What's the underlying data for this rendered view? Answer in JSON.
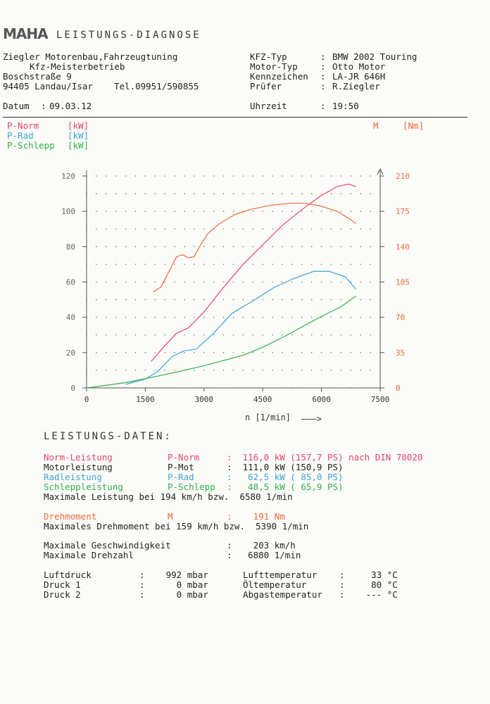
{
  "header": {
    "logo": "MAHA",
    "title": "LEISTUNGS-DIAGNOSE",
    "company_line1": "Ziegler Motorenbau,Fahrzeugtuning",
    "company_line2": "Kfz-Meisterbetrieb",
    "street": "Boschstraße 9",
    "city": "94405 Landau/Isar",
    "phone": "Tel.09951/590855",
    "date_label": "Datum",
    "date_value": "09.03.12",
    "fields": [
      {
        "label": "KFZ-Typ",
        "value": "BMW 2002 Touring"
      },
      {
        "label": "Motor-Typ",
        "value": "Otto Motor"
      },
      {
        "label": "Kennzeichen",
        "value": "LA-JR 646H"
      },
      {
        "label": "Prüfer",
        "value": "R.Ziegler"
      }
    ],
    "time_label": "Uhrzeit",
    "time_value": "19:50"
  },
  "legend": {
    "p_norm": "P-Norm",
    "p_norm_unit": "[kW]",
    "p_rad": "P-Rad",
    "p_rad_unit": "[kW]",
    "p_schlepp": "P-Schlepp",
    "p_schlepp_unit": "[kW]",
    "m": "M",
    "m_unit": "[Nm]"
  },
  "colors": {
    "p_norm": "#e4456a",
    "p_rad": "#3fa3d8",
    "p_schlepp": "#2fb14a",
    "m": "#ee6a3c",
    "axis": "#555555"
  },
  "chart_data": {
    "type": "line",
    "xlabel": "n [1/min]",
    "xlim": [
      0,
      7500
    ],
    "ylim_left": [
      0,
      120
    ],
    "ylim_right": [
      0,
      210
    ],
    "x_ticks": [
      0,
      1500,
      3000,
      4500,
      6000,
      7500
    ],
    "y_ticks_left": [
      0,
      20,
      40,
      60,
      80,
      100,
      120
    ],
    "y_ticks_right": [
      0,
      35,
      70,
      105,
      140,
      175,
      210
    ],
    "grid": true,
    "series": [
      {
        "name": "P-Norm",
        "unit": "kW",
        "axis": "left",
        "x": [
          1650,
          2000,
          2300,
          2600,
          3000,
          3500,
          4000,
          4500,
          5000,
          5500,
          6000,
          6400,
          6700,
          6880
        ],
        "y": [
          15,
          24,
          31,
          34,
          43,
          57,
          70,
          81,
          92,
          101,
          109,
          114,
          115.5,
          114
        ]
      },
      {
        "name": "P-Rad",
        "unit": "kW",
        "axis": "left",
        "x": [
          1000,
          1500,
          1800,
          2200,
          2500,
          2800,
          3200,
          3700,
          4300,
          4800,
          5300,
          5800,
          6200,
          6600,
          6880
        ],
        "y": [
          2,
          5,
          9,
          18,
          21,
          22,
          30,
          42,
          50,
          57,
          62,
          66,
          66,
          63,
          56
        ]
      },
      {
        "name": "P-Schlepp",
        "unit": "kW",
        "axis": "left",
        "x": [
          0,
          1000,
          2000,
          3000,
          4000,
          4500,
          5000,
          5500,
          6000,
          6500,
          6880
        ],
        "y": [
          0,
          3,
          7.5,
          12.5,
          18.5,
          23,
          28.5,
          34.5,
          40.5,
          46,
          52
        ]
      },
      {
        "name": "M",
        "unit": "Nm",
        "axis": "right",
        "x": [
          1700,
          1900,
          2100,
          2300,
          2450,
          2600,
          2750,
          2900,
          3100,
          3400,
          3800,
          4200,
          4700,
          5200,
          5600,
          6000,
          6400,
          6700,
          6880
        ],
        "y": [
          95,
          100,
          115,
          130,
          132,
          129,
          130,
          141,
          153,
          163,
          172,
          177,
          181,
          183,
          183,
          180,
          175,
          168,
          163
        ]
      }
    ]
  },
  "data": {
    "title": "LEISTUNGS-DATEN:",
    "power_rows": [
      {
        "label": "Norm-Leistung",
        "sym": "P-Norm",
        "value": ":  116,0 kW (157,7 PS) nach DIN 70020",
        "color": "norm"
      },
      {
        "label": "Motorleistung",
        "sym": "P-Mot",
        "value": ":  111,0 kW (150,9 PS)",
        "color": "plain"
      },
      {
        "label": "Radleistung",
        "sym": "P-Rad",
        "value": ":   62,5 kW ( 85,0 PS)",
        "color": "rad"
      },
      {
        "label": "Schleppleistung",
        "sym": "P-Schlepp",
        "value": ":   48,5 kW ( 65,9 PS)",
        "color": "schlepp"
      }
    ],
    "max_power": "Maximale Leistung bei 194 km/h bzw.  6580 1/min",
    "torque_label": "Drehmoment",
    "torque_sym": "M",
    "torque_value": ":    191 Nm",
    "max_torque": "Maximales Drehmoment bei 159 km/h bzw.  5390 1/min",
    "max_speed_label": "Maximale Geschwindigkeit",
    "max_speed_value": ":    203 km/h",
    "max_rpm_label": "Maximale Drehzahl",
    "max_rpm_value": ":   6880 1/min",
    "env_left": [
      {
        "label": "Luftdruck",
        "value": ":    992 mbar"
      },
      {
        "label": "Druck 1",
        "value": ":      0 mbar"
      },
      {
        "label": "Druck 2",
        "value": ":      0 mbar"
      }
    ],
    "env_right": [
      {
        "label": "Lufttemperatur",
        "value": ":     33 °C"
      },
      {
        "label": "Öltemperatur",
        "value": ":     80 °C"
      },
      {
        "label": "Abgastemperatur",
        "value": ":    --- °C"
      }
    ]
  }
}
